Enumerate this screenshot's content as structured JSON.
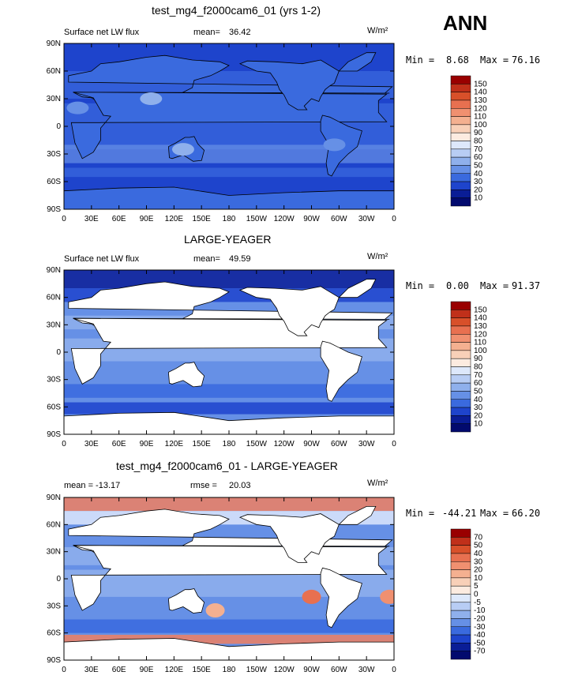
{
  "season": "ANN",
  "colors": {
    "ocean_deep": "#1133cc",
    "land": "#ffffff",
    "diff_warm": "#f08060"
  },
  "chart_data": [
    {
      "type": "contour_map",
      "title": "test_mg4_f2000cam6_01 (yrs 1-2)",
      "left_label": "Surface net LW flux",
      "mean_label": "mean=",
      "mean_value": "36.42",
      "units": "W/m²",
      "min_label": "Min =",
      "min_value": "8.68",
      "max_label": "Max =",
      "max_value": "76.16",
      "y_ticks": [
        "90N",
        "60N",
        "30N",
        "0",
        "30S",
        "60S",
        "90S"
      ],
      "x_ticks": [
        "0",
        "30E",
        "60E",
        "90E",
        "120E",
        "150E",
        "180",
        "150W",
        "120W",
        "90W",
        "60W",
        "30W",
        "0"
      ],
      "levels": [
        "150",
        "140",
        "130",
        "120",
        "110",
        "100",
        "90",
        "80",
        "70",
        "60",
        "50",
        "40",
        "30",
        "20",
        "10"
      ],
      "level_colors": [
        "#990000",
        "#c0301a",
        "#d8502a",
        "#e87050",
        "#f09070",
        "#f4b090",
        "#f8d0b8",
        "#fcebe0",
        "#dde8fb",
        "#b8cdf4",
        "#8fb0ec",
        "#6690e6",
        "#3a6ade",
        "#1e44cc",
        "#0a1d96",
        "#020a6e"
      ]
    },
    {
      "type": "contour_map",
      "title": "LARGE-YEAGER",
      "left_label": "Surface net LW flux",
      "mean_label": "mean=",
      "mean_value": "49.59",
      "units": "W/m²",
      "min_label": "Min =",
      "min_value": "0.00",
      "max_label": "Max =",
      "max_value": "91.37",
      "y_ticks": [
        "90N",
        "60N",
        "30N",
        "0",
        "30S",
        "60S",
        "90S"
      ],
      "x_ticks": [
        "0",
        "30E",
        "60E",
        "90E",
        "120E",
        "150E",
        "180",
        "150W",
        "120W",
        "90W",
        "60W",
        "30W",
        "0"
      ],
      "levels": [
        "150",
        "140",
        "130",
        "120",
        "110",
        "100",
        "90",
        "80",
        "70",
        "60",
        "50",
        "40",
        "30",
        "20",
        "10"
      ],
      "level_colors": [
        "#990000",
        "#c0301a",
        "#d8502a",
        "#e87050",
        "#f09070",
        "#f4b090",
        "#f8d0b8",
        "#fcebe0",
        "#dde8fb",
        "#b8cdf4",
        "#8fb0ec",
        "#6690e6",
        "#3a6ade",
        "#1e44cc",
        "#0a1d96",
        "#020a6e"
      ]
    },
    {
      "type": "contour_map",
      "title": "test_mg4_f2000cam6_01 - LARGE-YEAGER",
      "left_label": "mean = -13.17",
      "mean_label": "rmse =",
      "mean_value": "20.03",
      "units": "W/m²",
      "min_label": "Min =",
      "min_value": "-44.21",
      "max_label": "Max =",
      "max_value": "66.20",
      "y_ticks": [
        "90N",
        "60N",
        "30N",
        "0",
        "30S",
        "60S",
        "90S"
      ],
      "x_ticks": [
        "0",
        "30E",
        "60E",
        "90E",
        "120E",
        "150E",
        "180",
        "150W",
        "120W",
        "90W",
        "60W",
        "30W",
        "0"
      ],
      "levels": [
        "70",
        "50",
        "40",
        "30",
        "20",
        "10",
        "5",
        "0",
        "-5",
        "-10",
        "-20",
        "-30",
        "-40",
        "-50",
        "-70"
      ],
      "level_colors": [
        "#990000",
        "#c0301a",
        "#d8502a",
        "#e87050",
        "#f09070",
        "#f4b090",
        "#f8d0b8",
        "#fcebe0",
        "#dde8fb",
        "#b8cdf4",
        "#8fb0ec",
        "#6690e6",
        "#3a6ade",
        "#1e44cc",
        "#0a1d96",
        "#020a6e"
      ]
    }
  ]
}
